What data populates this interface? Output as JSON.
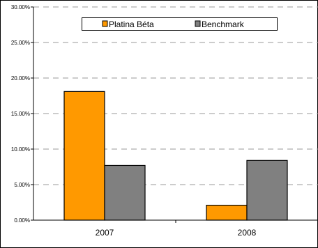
{
  "chart_data": {
    "type": "bar",
    "title": "",
    "xlabel": "",
    "ylabel": "",
    "categories": [
      "2007",
      "2008"
    ],
    "series": [
      {
        "name": "Platina Béta",
        "values": [
          18.1,
          2.1
        ],
        "color": "#ff9900"
      },
      {
        "name": "Benchmark",
        "values": [
          7.7,
          8.4
        ],
        "color": "#808080"
      }
    ],
    "ylim": [
      0,
      30
    ],
    "yticks": [
      0,
      5,
      10,
      15,
      20,
      25,
      30
    ],
    "ytick_labels": [
      "0.00%",
      "5.00%",
      "10.00%",
      "15.00%",
      "20.00%",
      "25.00%",
      "30.00%"
    ],
    "grid": true,
    "legend_position": "top-center"
  }
}
